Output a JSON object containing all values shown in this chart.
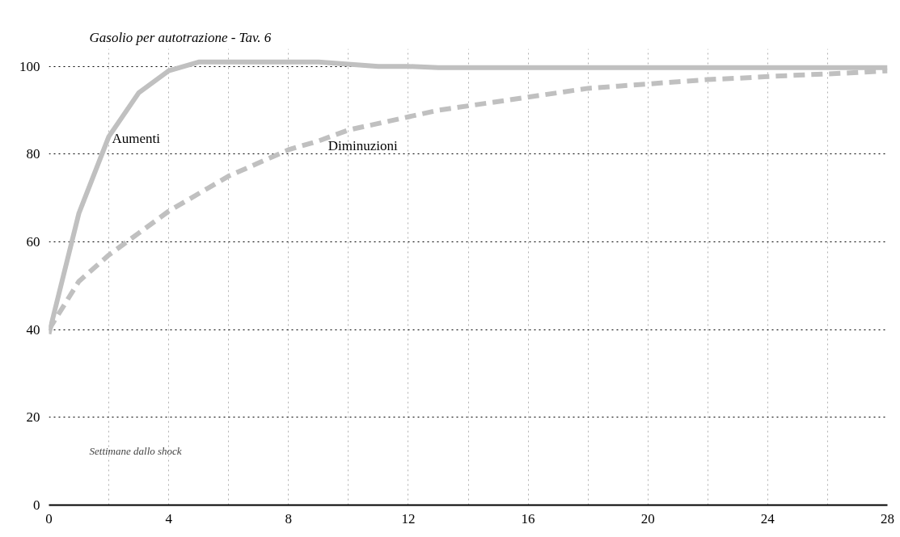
{
  "chart_data": {
    "type": "line",
    "title": "Gasolio per autotrazione - Tav. 6",
    "x": [
      0,
      1,
      2,
      3,
      4,
      5,
      6,
      7,
      8,
      9,
      10,
      11,
      12,
      13,
      14,
      15,
      16,
      17,
      18,
      19,
      20,
      21,
      22,
      23,
      24,
      25,
      26,
      27,
      28
    ],
    "series": [
      {
        "name": "Aumenti",
        "color": "#c0c0c0",
        "line_style": "solid",
        "values": [
          39,
          66.5,
          84,
          94,
          99,
          101,
          101,
          101,
          101,
          101,
          100.5,
          100,
          100,
          99.7,
          99.7,
          99.7,
          99.7,
          99.7,
          99.7,
          99.7,
          99.7,
          99.7,
          99.7,
          99.7,
          99.7,
          99.7,
          99.7,
          99.7,
          99.7
        ]
      },
      {
        "name": "Diminuzioni",
        "color": "#c0c0c0",
        "line_style": "dashed",
        "values": [
          40,
          51,
          57,
          62,
          67,
          71,
          75,
          78,
          81,
          83,
          85.5,
          87,
          88.5,
          90,
          91,
          92,
          93,
          94,
          95,
          95.5,
          96,
          96.5,
          97,
          97.3,
          97.7,
          98,
          98.3,
          98.6,
          99
        ]
      }
    ],
    "xlim": [
      0,
      28
    ],
    "ylim": [
      0,
      104
    ],
    "xticks": [
      0,
      {
        "value": 2,
        "label": null
      },
      4,
      {
        "value": 6,
        "label": null
      },
      8,
      {
        "value": 10,
        "label": null
      },
      12,
      {
        "value": 14,
        "label": null
      },
      16,
      {
        "value": 18,
        "label": null
      },
      20,
      {
        "value": 22,
        "label": null
      },
      24,
      {
        "value": 26,
        "label": null
      },
      28
    ],
    "yticks": [
      0,
      20,
      40,
      60,
      80,
      100
    ],
    "grid": true,
    "annotations": [
      "Settimane dallo shock"
    ]
  }
}
